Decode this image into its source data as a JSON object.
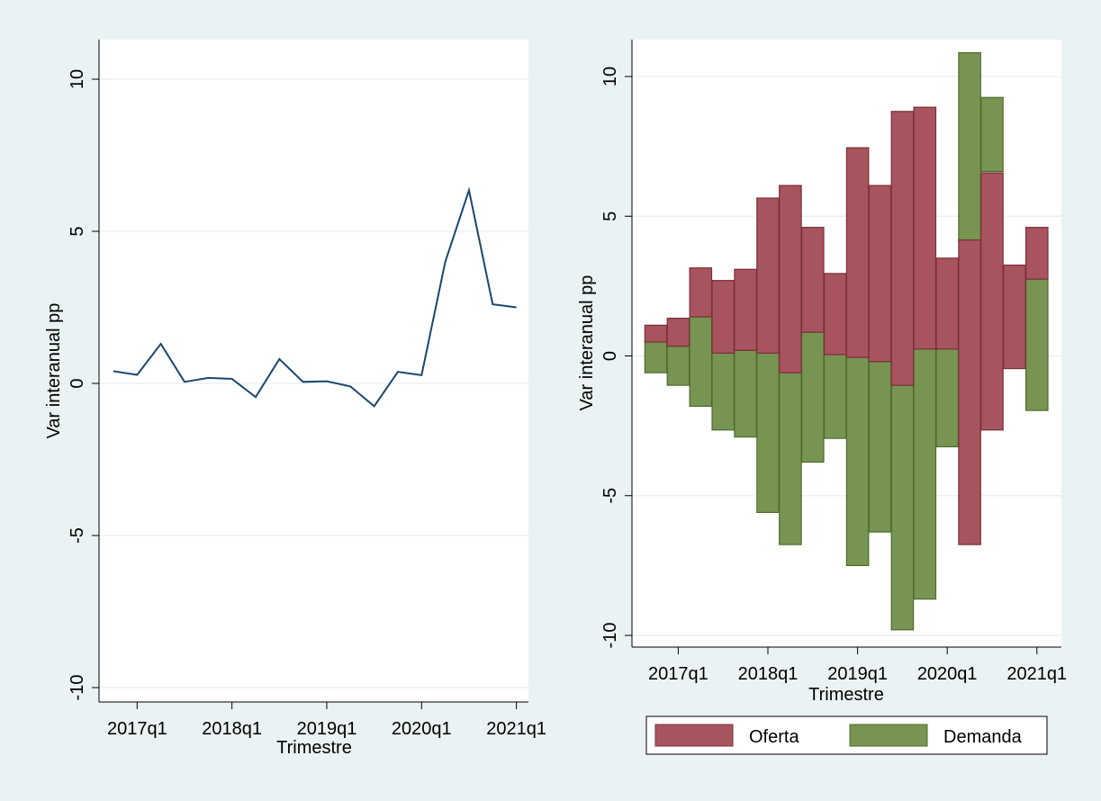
{
  "colors": {
    "background": "#eaf2f3",
    "plot_background": "#ffffff",
    "gridline": "#eaf2f3",
    "line": "#1a476f",
    "oferta": "#a8545e",
    "oferta_edge": "#7a2f39",
    "demanda": "#779452",
    "demanda_edge": "#4f6b2e"
  },
  "chart_data": [
    {
      "type": "line",
      "title": "",
      "xlabel": "Trimestre",
      "ylabel": "Var interanual pp",
      "ylim": [
        -10,
        10
      ],
      "yticks": [
        10,
        5,
        0,
        -5,
        -10
      ],
      "xticks": [
        "2017q1",
        "2018q1",
        "2019q1",
        "2020q1",
        "2021q1"
      ],
      "grid": true,
      "x": [
        "2016q4",
        "2017q1",
        "2017q2",
        "2017q3",
        "2017q4",
        "2018q1",
        "2018q2",
        "2018q3",
        "2018q4",
        "2019q1",
        "2019q2",
        "2019q3",
        "2019q4",
        "2020q1",
        "2020q2",
        "2020q3",
        "2020q4",
        "2021q1"
      ],
      "series": [
        {
          "values": [
            0.4,
            0.28,
            1.3,
            0.05,
            0.18,
            0.15,
            -0.45,
            0.8,
            0.05,
            0.07,
            -0.1,
            -0.75,
            0.38,
            0.27,
            4.0,
            6.35,
            2.6,
            2.5
          ]
        }
      ]
    },
    {
      "type": "bar",
      "title": "",
      "xlabel": "Trimestre",
      "ylabel": "Var interanual pp",
      "ylim": [
        -10,
        10
      ],
      "yticks": [
        10,
        5,
        0,
        -5,
        -10
      ],
      "xticks": [
        "2017q1",
        "2018q1",
        "2019q1",
        "2020q1",
        "2021q1"
      ],
      "grid": true,
      "legend": {
        "placement": "bottom",
        "entries": [
          "Oferta",
          "Demanda"
        ]
      },
      "x": [
        "2016q4",
        "2017q1",
        "2017q2",
        "2017q3",
        "2017q4",
        "2018q1",
        "2018q2",
        "2018q3",
        "2018q4",
        "2019q1",
        "2019q2",
        "2019q3",
        "2019q4",
        "2020q1",
        "2020q2",
        "2020q3",
        "2020q4",
        "2021q1"
      ],
      "series": [
        {
          "name": "Oferta",
          "low": [
            0.5,
            0.35,
            1.4,
            0.1,
            0.2,
            0.1,
            -0.6,
            0.85,
            0.05,
            -0.05,
            -0.2,
            -1.05,
            0.25,
            0.25,
            -6.75,
            -2.65,
            -0.45,
            2.75
          ],
          "high": [
            1.1,
            1.35,
            3.15,
            2.7,
            3.1,
            5.65,
            6.1,
            4.6,
            2.95,
            7.45,
            6.1,
            8.75,
            8.9,
            3.5,
            4.15,
            6.55,
            3.25,
            4.6
          ]
        },
        {
          "name": "Demanda",
          "low": [
            -0.6,
            -1.05,
            -1.8,
            -2.65,
            -2.9,
            -5.6,
            -6.75,
            -3.8,
            -2.95,
            -7.5,
            -6.3,
            -9.8,
            -8.7,
            -3.25,
            4.1,
            6.6,
            -0.45,
            -1.95
          ],
          "high": [
            0.5,
            0.35,
            1.4,
            0.1,
            0.2,
            0.1,
            -0.6,
            0.85,
            0.05,
            -0.05,
            -0.2,
            -1.05,
            0.25,
            0.25,
            10.85,
            9.25,
            2.8,
            2.75
          ]
        }
      ]
    }
  ]
}
